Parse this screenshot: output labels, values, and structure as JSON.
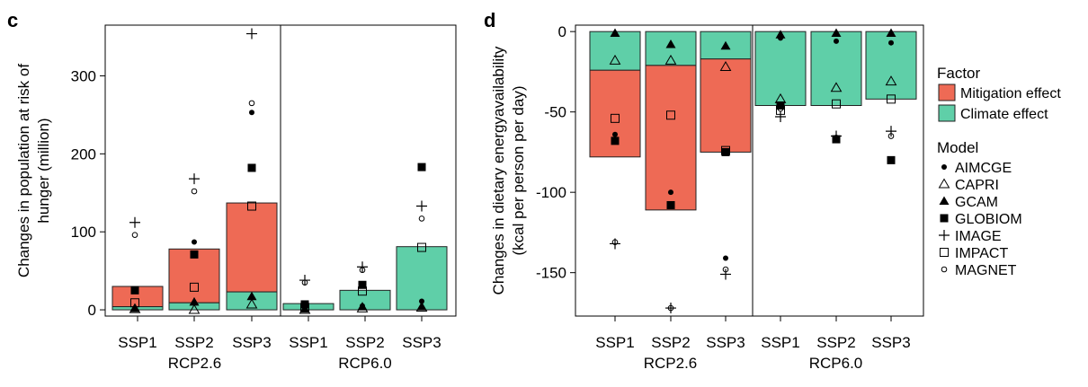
{
  "colors": {
    "mitigation": "#EE6A55",
    "climate": "#5FCFA8",
    "outline": "#222222"
  },
  "panels": {
    "c": {
      "letter": "c"
    },
    "d": {
      "letter": "d"
    }
  },
  "legend": {
    "factor_title": "Factor",
    "factor_items": [
      {
        "label": "Mitigation effect",
        "color": "#EE6A55"
      },
      {
        "label": "Climate effect",
        "color": "#5FCFA8"
      }
    ],
    "model_title": "Model",
    "model_items": [
      {
        "label": "AIMCGE",
        "marker": "dot"
      },
      {
        "label": "CAPRI",
        "marker": "triangle-open"
      },
      {
        "label": "GCAM",
        "marker": "triangle-filled"
      },
      {
        "label": "GLOBIOM",
        "marker": "square-filled"
      },
      {
        "label": "IMAGE",
        "marker": "plus"
      },
      {
        "label": "IMPACT",
        "marker": "square-open"
      },
      {
        "label": "MAGNET",
        "marker": "circle-open"
      }
    ]
  },
  "chart_data": [
    {
      "panel": "c",
      "type": "bar",
      "stacked": true,
      "ylabel_lines": [
        "Changes in population at risk of",
        "hunger (million)"
      ],
      "ylim": [
        -8,
        365
      ],
      "yticks": [
        0,
        100,
        200,
        300
      ],
      "groups": [
        {
          "label": "RCP2.6",
          "categories": [
            "SSP1",
            "SSP2",
            "SSP3"
          ]
        },
        {
          "label": "RCP6.0",
          "categories": [
            "SSP1",
            "SSP2",
            "SSP3"
          ]
        }
      ],
      "bars": [
        {
          "climate": 4,
          "total": 30
        },
        {
          "climate": 9,
          "total": 78
        },
        {
          "climate": 23,
          "total": 137
        },
        {
          "climate": 8,
          "total": 8
        },
        {
          "climate": 25,
          "total": 25
        },
        {
          "climate": 81,
          "total": 81
        }
      ],
      "points": [
        {
          "bar": 0,
          "model": "AIMCGE",
          "dx": -3,
          "y": 26
        },
        {
          "bar": 0,
          "model": "CAPRI",
          "dx": -3,
          "y": 1
        },
        {
          "bar": 0,
          "model": "GCAM",
          "dx": -3,
          "y": 2
        },
        {
          "bar": 0,
          "model": "GLOBIOM",
          "dx": -3,
          "y": 25
        },
        {
          "bar": 0,
          "model": "IMAGE",
          "dx": -3,
          "y": 112
        },
        {
          "bar": 0,
          "model": "IMPACT",
          "dx": -3,
          "y": 9
        },
        {
          "bar": 0,
          "model": "MAGNET",
          "dx": -3,
          "y": 96
        },
        {
          "bar": 1,
          "model": "AIMCGE",
          "dx": 0,
          "y": 87
        },
        {
          "bar": 1,
          "model": "CAPRI",
          "dx": 0,
          "y": 0
        },
        {
          "bar": 1,
          "model": "GCAM",
          "dx": 0,
          "y": 10
        },
        {
          "bar": 1,
          "model": "GLOBIOM",
          "dx": 0,
          "y": 71
        },
        {
          "bar": 1,
          "model": "IMAGE",
          "dx": 0,
          "y": 168
        },
        {
          "bar": 1,
          "model": "IMPACT",
          "dx": 0,
          "y": 29
        },
        {
          "bar": 1,
          "model": "MAGNET",
          "dx": 0,
          "y": 152
        },
        {
          "bar": 2,
          "model": "AIMCGE",
          "dx": 0,
          "y": 253
        },
        {
          "bar": 2,
          "model": "CAPRI",
          "dx": 0,
          "y": 7
        },
        {
          "bar": 2,
          "model": "GCAM",
          "dx": 0,
          "y": 17
        },
        {
          "bar": 2,
          "model": "GLOBIOM",
          "dx": 0,
          "y": 182
        },
        {
          "bar": 2,
          "model": "IMAGE",
          "dx": 0,
          "y": 354
        },
        {
          "bar": 2,
          "model": "IMPACT",
          "dx": 0,
          "y": 133
        },
        {
          "bar": 2,
          "model": "MAGNET",
          "dx": 0,
          "y": 265
        },
        {
          "bar": 3,
          "model": "AIMCGE",
          "dx": -4,
          "y": 4
        },
        {
          "bar": 3,
          "model": "CAPRI",
          "dx": -4,
          "y": 0
        },
        {
          "bar": 3,
          "model": "GCAM",
          "dx": -4,
          "y": 1
        },
        {
          "bar": 3,
          "model": "GLOBIOM",
          "dx": -4,
          "y": 7
        },
        {
          "bar": 3,
          "model": "IMAGE",
          "dx": -4,
          "y": 38
        },
        {
          "bar": 3,
          "model": "IMPACT",
          "dx": -4,
          "y": 3
        },
        {
          "bar": 3,
          "model": "MAGNET",
          "dx": -4,
          "y": 35
        },
        {
          "bar": 4,
          "model": "AIMCGE",
          "dx": -3,
          "y": 5
        },
        {
          "bar": 4,
          "model": "CAPRI",
          "dx": -3,
          "y": 2
        },
        {
          "bar": 4,
          "model": "GCAM",
          "dx": -3,
          "y": 4
        },
        {
          "bar": 4,
          "model": "GLOBIOM",
          "dx": -3,
          "y": 32
        },
        {
          "bar": 4,
          "model": "IMAGE",
          "dx": -3,
          "y": 55
        },
        {
          "bar": 4,
          "model": "IMPACT",
          "dx": -3,
          "y": 24
        },
        {
          "bar": 4,
          "model": "MAGNET",
          "dx": -3,
          "y": 51
        },
        {
          "bar": 5,
          "model": "AIMCGE",
          "dx": 0,
          "y": 11
        },
        {
          "bar": 5,
          "model": "CAPRI",
          "dx": 0,
          "y": 3
        },
        {
          "bar": 5,
          "model": "GCAM",
          "dx": 0,
          "y": 4
        },
        {
          "bar": 5,
          "model": "GLOBIOM",
          "dx": 0,
          "y": 183
        },
        {
          "bar": 5,
          "model": "IMAGE",
          "dx": 0,
          "y": 133
        },
        {
          "bar": 5,
          "model": "IMPACT",
          "dx": 0,
          "y": 80
        },
        {
          "bar": 5,
          "model": "MAGNET",
          "dx": 0,
          "y": 117
        }
      ]
    },
    {
      "panel": "d",
      "type": "bar",
      "stacked": true,
      "ylabel_lines": [
        "Changes in dietary energyavailability",
        "(kcal per person per day)"
      ],
      "ylim": [
        -177,
        4
      ],
      "yticks": [
        0,
        -50,
        -100,
        -150
      ],
      "groups": [
        {
          "label": "RCP2.6",
          "categories": [
            "SSP1",
            "SSP2",
            "SSP3"
          ]
        },
        {
          "label": "RCP6.0",
          "categories": [
            "SSP1",
            "SSP2",
            "SSP3"
          ]
        }
      ],
      "bars": [
        {
          "climate": -24,
          "total": -78
        },
        {
          "climate": -21,
          "total": -111
        },
        {
          "climate": -17,
          "total": -75
        },
        {
          "climate": -46,
          "total": -46
        },
        {
          "climate": -46,
          "total": -46
        },
        {
          "climate": -42,
          "total": -42
        }
      ],
      "points": [
        {
          "bar": 0,
          "model": "AIMCGE",
          "dx": 0,
          "y": -64
        },
        {
          "bar": 0,
          "model": "CAPRI",
          "dx": 0,
          "y": -18
        },
        {
          "bar": 0,
          "model": "GCAM",
          "dx": 0,
          "y": -1
        },
        {
          "bar": 0,
          "model": "GLOBIOM",
          "dx": 0,
          "y": -68
        },
        {
          "bar": 0,
          "model": "IMAGE",
          "dx": 0,
          "y": -132
        },
        {
          "bar": 0,
          "model": "IMPACT",
          "dx": 0,
          "y": -54
        },
        {
          "bar": 0,
          "model": "MAGNET",
          "dx": 0,
          "y": -131
        },
        {
          "bar": 1,
          "model": "AIMCGE",
          "dx": 0,
          "y": -100
        },
        {
          "bar": 1,
          "model": "CAPRI",
          "dx": 0,
          "y": -18
        },
        {
          "bar": 1,
          "model": "GCAM",
          "dx": 0,
          "y": -8
        },
        {
          "bar": 1,
          "model": "GLOBIOM",
          "dx": 0,
          "y": -108
        },
        {
          "bar": 1,
          "model": "IMAGE",
          "dx": 0,
          "y": -172
        },
        {
          "bar": 1,
          "model": "IMPACT",
          "dx": 0,
          "y": -52
        },
        {
          "bar": 1,
          "model": "MAGNET",
          "dx": 0,
          "y": -172
        },
        {
          "bar": 2,
          "model": "AIMCGE",
          "dx": 0,
          "y": -141
        },
        {
          "bar": 2,
          "model": "CAPRI",
          "dx": 0,
          "y": -22
        },
        {
          "bar": 2,
          "model": "GCAM",
          "dx": 0,
          "y": -9
        },
        {
          "bar": 2,
          "model": "GLOBIOM",
          "dx": 0,
          "y": -75
        },
        {
          "bar": 2,
          "model": "IMAGE",
          "dx": 0,
          "y": -151
        },
        {
          "bar": 2,
          "model": "IMPACT",
          "dx": 0,
          "y": -74
        },
        {
          "bar": 2,
          "model": "MAGNET",
          "dx": 0,
          "y": -148
        },
        {
          "bar": 3,
          "model": "AIMCGE",
          "dx": 0,
          "y": -4
        },
        {
          "bar": 3,
          "model": "CAPRI",
          "dx": 0,
          "y": -42
        },
        {
          "bar": 3,
          "model": "GCAM",
          "dx": 0,
          "y": -2
        },
        {
          "bar": 3,
          "model": "GLOBIOM",
          "dx": 0,
          "y": -46
        },
        {
          "bar": 3,
          "model": "IMAGE",
          "dx": 0,
          "y": -53
        },
        {
          "bar": 3,
          "model": "IMPACT",
          "dx": 0,
          "y": -49
        },
        {
          "bar": 3,
          "model": "MAGNET",
          "dx": 0,
          "y": -48
        },
        {
          "bar": 4,
          "model": "AIMCGE",
          "dx": 0,
          "y": -6
        },
        {
          "bar": 4,
          "model": "CAPRI",
          "dx": 0,
          "y": -35
        },
        {
          "bar": 4,
          "model": "GCAM",
          "dx": 0,
          "y": -1
        },
        {
          "bar": 4,
          "model": "GLOBIOM",
          "dx": 0,
          "y": -67
        },
        {
          "bar": 4,
          "model": "IMAGE",
          "dx": 0,
          "y": -65
        },
        {
          "bar": 4,
          "model": "IMPACT",
          "dx": 0,
          "y": -45
        },
        {
          "bar": 4,
          "model": "MAGNET",
          "dx": 0,
          "y": -66
        },
        {
          "bar": 5,
          "model": "AIMCGE",
          "dx": 0,
          "y": -7
        },
        {
          "bar": 5,
          "model": "CAPRI",
          "dx": 0,
          "y": -31
        },
        {
          "bar": 5,
          "model": "GCAM",
          "dx": 0,
          "y": -1
        },
        {
          "bar": 5,
          "model": "GLOBIOM",
          "dx": 0,
          "y": -80
        },
        {
          "bar": 5,
          "model": "IMAGE",
          "dx": 0,
          "y": -62
        },
        {
          "bar": 5,
          "model": "IMPACT",
          "dx": 0,
          "y": -42
        },
        {
          "bar": 5,
          "model": "MAGNET",
          "dx": 0,
          "y": -65
        }
      ]
    }
  ]
}
